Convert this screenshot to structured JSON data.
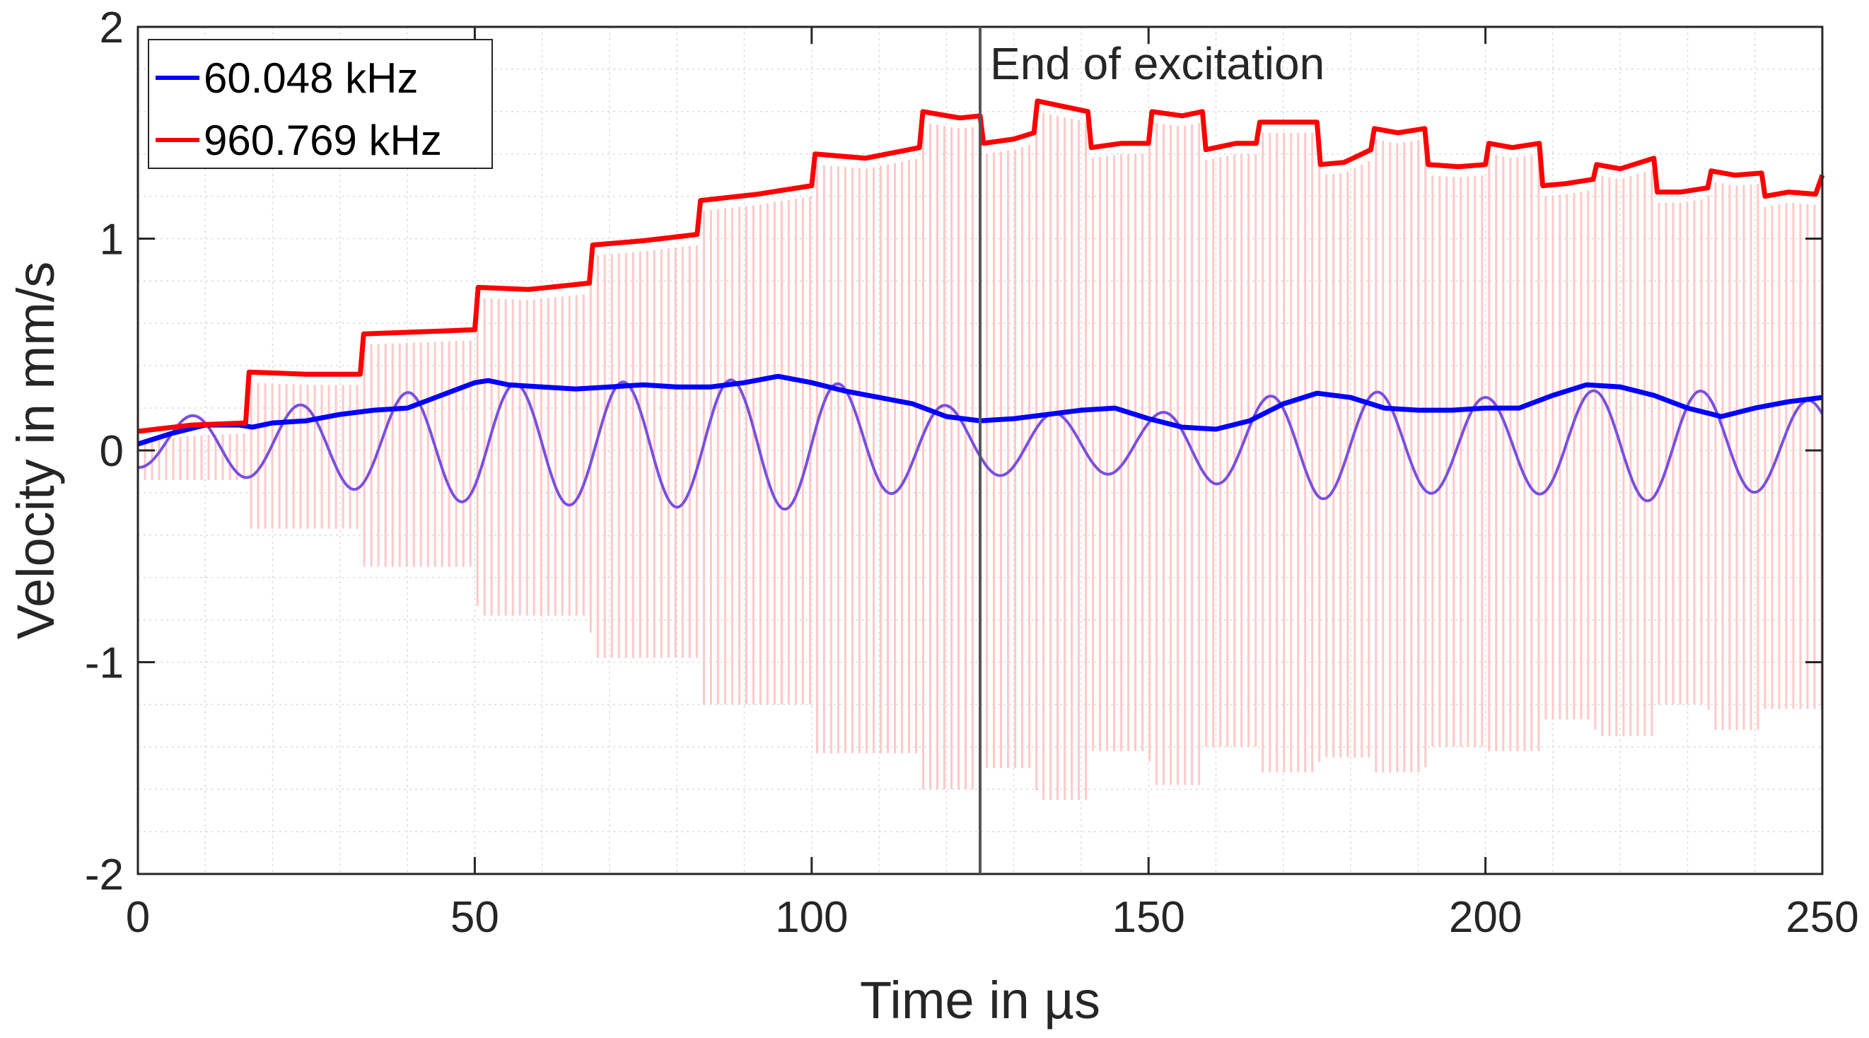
{
  "chart_data": {
    "type": "line",
    "title": "",
    "xlabel": "Time in µs",
    "ylabel": "Velocity in mm/s",
    "xlim": [
      0,
      250
    ],
    "ylim": [
      -2,
      2
    ],
    "xticks": [
      0,
      50,
      100,
      150,
      200,
      250
    ],
    "xtick_labels": [
      "0",
      "50",
      "100",
      "150",
      "200",
      "250"
    ],
    "yticks": [
      -2,
      -1,
      0,
      1,
      2
    ],
    "ytick_labels": [
      "-2",
      "-1",
      "0",
      "1",
      "2"
    ],
    "grid": "minor-dotted",
    "legend_position": "top-left",
    "annotation": {
      "text": "End of excitation",
      "x": 125
    },
    "raw_signal": {
      "color": "#ffc8c8",
      "description_freq_khz": 960.769,
      "lower_envelope": {
        "t": [
          0,
          16,
          16.5,
          33,
          33.5,
          50,
          50.5,
          67,
          67.5,
          83,
          83.5,
          100,
          100.5,
          116,
          116.5,
          125,
          125.5,
          133,
          133.5,
          141,
          141.5,
          150,
          150.5,
          158,
          158.5,
          166,
          166.5,
          175,
          175.5,
          183,
          183.5,
          191,
          191.5,
          200,
          200.5,
          208,
          208.5,
          216,
          216.5,
          225,
          225.5,
          233,
          233.5,
          241,
          241.5,
          250
        ],
        "v": [
          -0.14,
          -0.14,
          -0.37,
          -0.37,
          -0.55,
          -0.55,
          -0.78,
          -0.78,
          -0.98,
          -0.98,
          -1.2,
          -1.2,
          -1.43,
          -1.43,
          -1.6,
          -1.6,
          -1.5,
          -1.5,
          -1.65,
          -1.65,
          -1.42,
          -1.42,
          -1.58,
          -1.58,
          -1.4,
          -1.4,
          -1.52,
          -1.52,
          -1.45,
          -1.45,
          -1.52,
          -1.52,
          -1.4,
          -1.4,
          -1.42,
          -1.42,
          -1.27,
          -1.27,
          -1.35,
          -1.35,
          -1.2,
          -1.2,
          -1.32,
          -1.32,
          -1.22,
          -1.22
        ]
      }
    },
    "series": [
      {
        "name": "60.048 kHz",
        "color": "#0000ff",
        "t": [
          0,
          5,
          10,
          15,
          17,
          20,
          25,
          30,
          35,
          40,
          45,
          50,
          52,
          55,
          60,
          65,
          70,
          75,
          80,
          85,
          90,
          95,
          100,
          105,
          110,
          115,
          120,
          125,
          130,
          135,
          140,
          145,
          150,
          155,
          160,
          165,
          170,
          175,
          180,
          185,
          190,
          195,
          200,
          205,
          210,
          215,
          220,
          225,
          230,
          235,
          240,
          245,
          250
        ],
        "v": [
          0.03,
          0.08,
          0.12,
          0.12,
          0.11,
          0.13,
          0.14,
          0.17,
          0.19,
          0.2,
          0.26,
          0.32,
          0.33,
          0.31,
          0.3,
          0.29,
          0.3,
          0.31,
          0.3,
          0.3,
          0.32,
          0.35,
          0.32,
          0.28,
          0.25,
          0.22,
          0.16,
          0.14,
          0.15,
          0.17,
          0.19,
          0.2,
          0.15,
          0.11,
          0.1,
          0.14,
          0.22,
          0.27,
          0.25,
          0.2,
          0.19,
          0.19,
          0.2,
          0.2,
          0.26,
          0.31,
          0.3,
          0.26,
          0.2,
          0.16,
          0.2,
          0.23,
          0.25
        ]
      },
      {
        "name": "960.769 kHz",
        "color": "#ff0000",
        "t": [
          0,
          8,
          16,
          16.5,
          25,
          33,
          33.5,
          42,
          50,
          50.5,
          58,
          67,
          67.5,
          75,
          83,
          83.5,
          92,
          100,
          100.5,
          108,
          116,
          116.5,
          122,
          125,
          125.5,
          130,
          133,
          133.5,
          138,
          141,
          141.5,
          146,
          150,
          150.5,
          155,
          158,
          158.5,
          163,
          166,
          166.5,
          171,
          175,
          175.5,
          179,
          183,
          183.5,
          187,
          191,
          191.5,
          196,
          200,
          200.5,
          204,
          208,
          208.5,
          212,
          216,
          216.5,
          220,
          225,
          225.5,
          229,
          233,
          233.5,
          237,
          241,
          241.5,
          245,
          249,
          250
        ],
        "v": [
          0.09,
          0.12,
          0.13,
          0.37,
          0.36,
          0.36,
          0.55,
          0.56,
          0.57,
          0.77,
          0.76,
          0.79,
          0.97,
          0.99,
          1.02,
          1.18,
          1.21,
          1.25,
          1.4,
          1.38,
          1.43,
          1.6,
          1.57,
          1.58,
          1.45,
          1.47,
          1.5,
          1.65,
          1.62,
          1.6,
          1.43,
          1.45,
          1.45,
          1.6,
          1.58,
          1.6,
          1.42,
          1.45,
          1.45,
          1.55,
          1.55,
          1.55,
          1.35,
          1.36,
          1.42,
          1.52,
          1.5,
          1.52,
          1.35,
          1.34,
          1.35,
          1.45,
          1.43,
          1.45,
          1.25,
          1.26,
          1.28,
          1.35,
          1.33,
          1.38,
          1.22,
          1.22,
          1.24,
          1.32,
          1.3,
          1.31,
          1.2,
          1.22,
          1.21,
          1.3
        ]
      }
    ],
    "modulated_signal": {
      "color": "#7a4fe0",
      "period_us": 16.0,
      "amplitude": {
        "t": [
          0,
          20,
          50,
          100,
          125,
          150,
          175,
          200,
          225,
          250
        ],
        "a": [
          0.11,
          0.17,
          0.28,
          0.31,
          0.15,
          0.14,
          0.26,
          0.22,
          0.27,
          0.2
        ]
      },
      "offset": 0.03
    }
  }
}
